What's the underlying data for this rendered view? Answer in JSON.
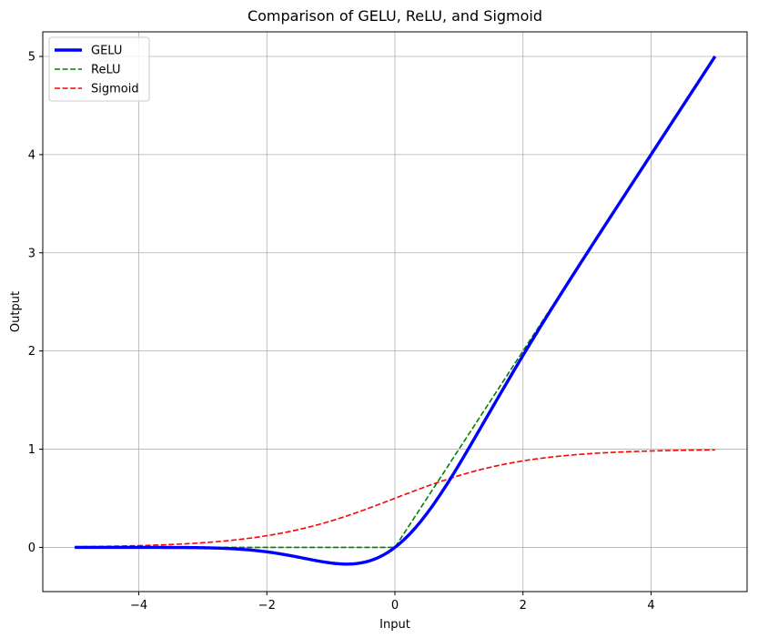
{
  "chart_data": {
    "type": "line",
    "title": "Comparison of GELU, ReLU, and Sigmoid",
    "xlabel": "Input",
    "ylabel": "Output",
    "xlim": [
      -5.5,
      5.5
    ],
    "ylim": [
      -0.45,
      5.25
    ],
    "grid": true,
    "legend_position": "upper-left",
    "x_ticks": [
      -4,
      -2,
      0,
      2,
      4
    ],
    "x_tick_labels": [
      "−4",
      "−2",
      "0",
      "2",
      "4"
    ],
    "y_ticks": [
      0,
      1,
      2,
      3,
      4,
      5
    ],
    "y_tick_labels": [
      "0",
      "1",
      "2",
      "3",
      "4",
      "5"
    ],
    "x_range": [
      -5,
      5
    ],
    "series": [
      {
        "name": "GELU",
        "function": "gelu",
        "color": "#0000ff",
        "style": "solid"
      },
      {
        "name": "ReLU",
        "function": "relu",
        "color": "#008000",
        "style": "dashed"
      },
      {
        "name": "Sigmoid",
        "function": "sigmoid",
        "color": "#ff0000",
        "style": "dashed"
      }
    ]
  }
}
